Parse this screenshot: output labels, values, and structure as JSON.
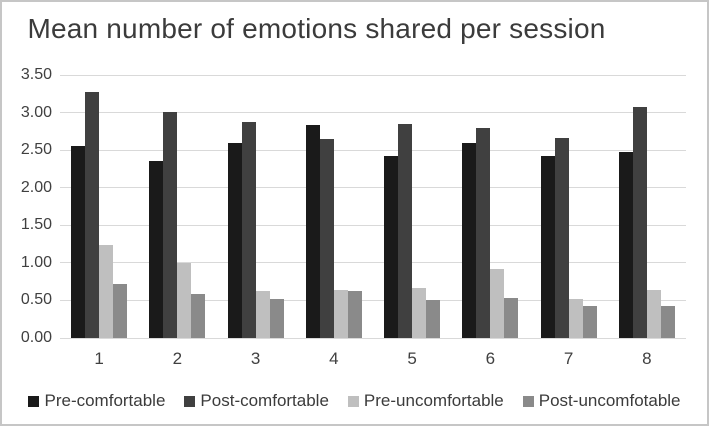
{
  "chart_data": {
    "type": "bar",
    "title": "Mean number of emotions shared per session",
    "xlabel": "",
    "ylabel": "",
    "categories": [
      "1",
      "2",
      "3",
      "4",
      "5",
      "6",
      "7",
      "8"
    ],
    "series": [
      {
        "name": "Pre-comfortable",
        "color": "#1a1a1a",
        "values": [
          2.55,
          2.35,
          2.6,
          2.83,
          2.42,
          2.59,
          2.42,
          2.47
        ]
      },
      {
        "name": "Post-comfortable",
        "color": "#404040",
        "values": [
          3.27,
          3.01,
          2.87,
          2.65,
          2.85,
          2.79,
          2.66,
          3.08
        ]
      },
      {
        "name": "Pre-uncomfortable",
        "color": "#bfbfbf",
        "values": [
          1.24,
          1.0,
          0.63,
          0.64,
          0.67,
          0.92,
          0.52,
          0.64
        ]
      },
      {
        "name": "Post-uncomfotable",
        "color": "#8a8a8a",
        "values": [
          0.72,
          0.59,
          0.52,
          0.62,
          0.5,
          0.53,
          0.42,
          0.43
        ]
      }
    ],
    "ylim": [
      0,
      3.5
    ],
    "ytick_step": 0.5,
    "ytick_labels": [
      "0.00",
      "0.50",
      "1.00",
      "1.50",
      "2.00",
      "2.50",
      "3.00",
      "3.50"
    ],
    "grid": true,
    "legend_position": "bottom"
  },
  "colors": {
    "grid": "#d9d9d9",
    "axis_text": "#404040",
    "title_text": "#3b3b3b",
    "frame_border": "#c6c6c6",
    "background": "#ffffff"
  }
}
